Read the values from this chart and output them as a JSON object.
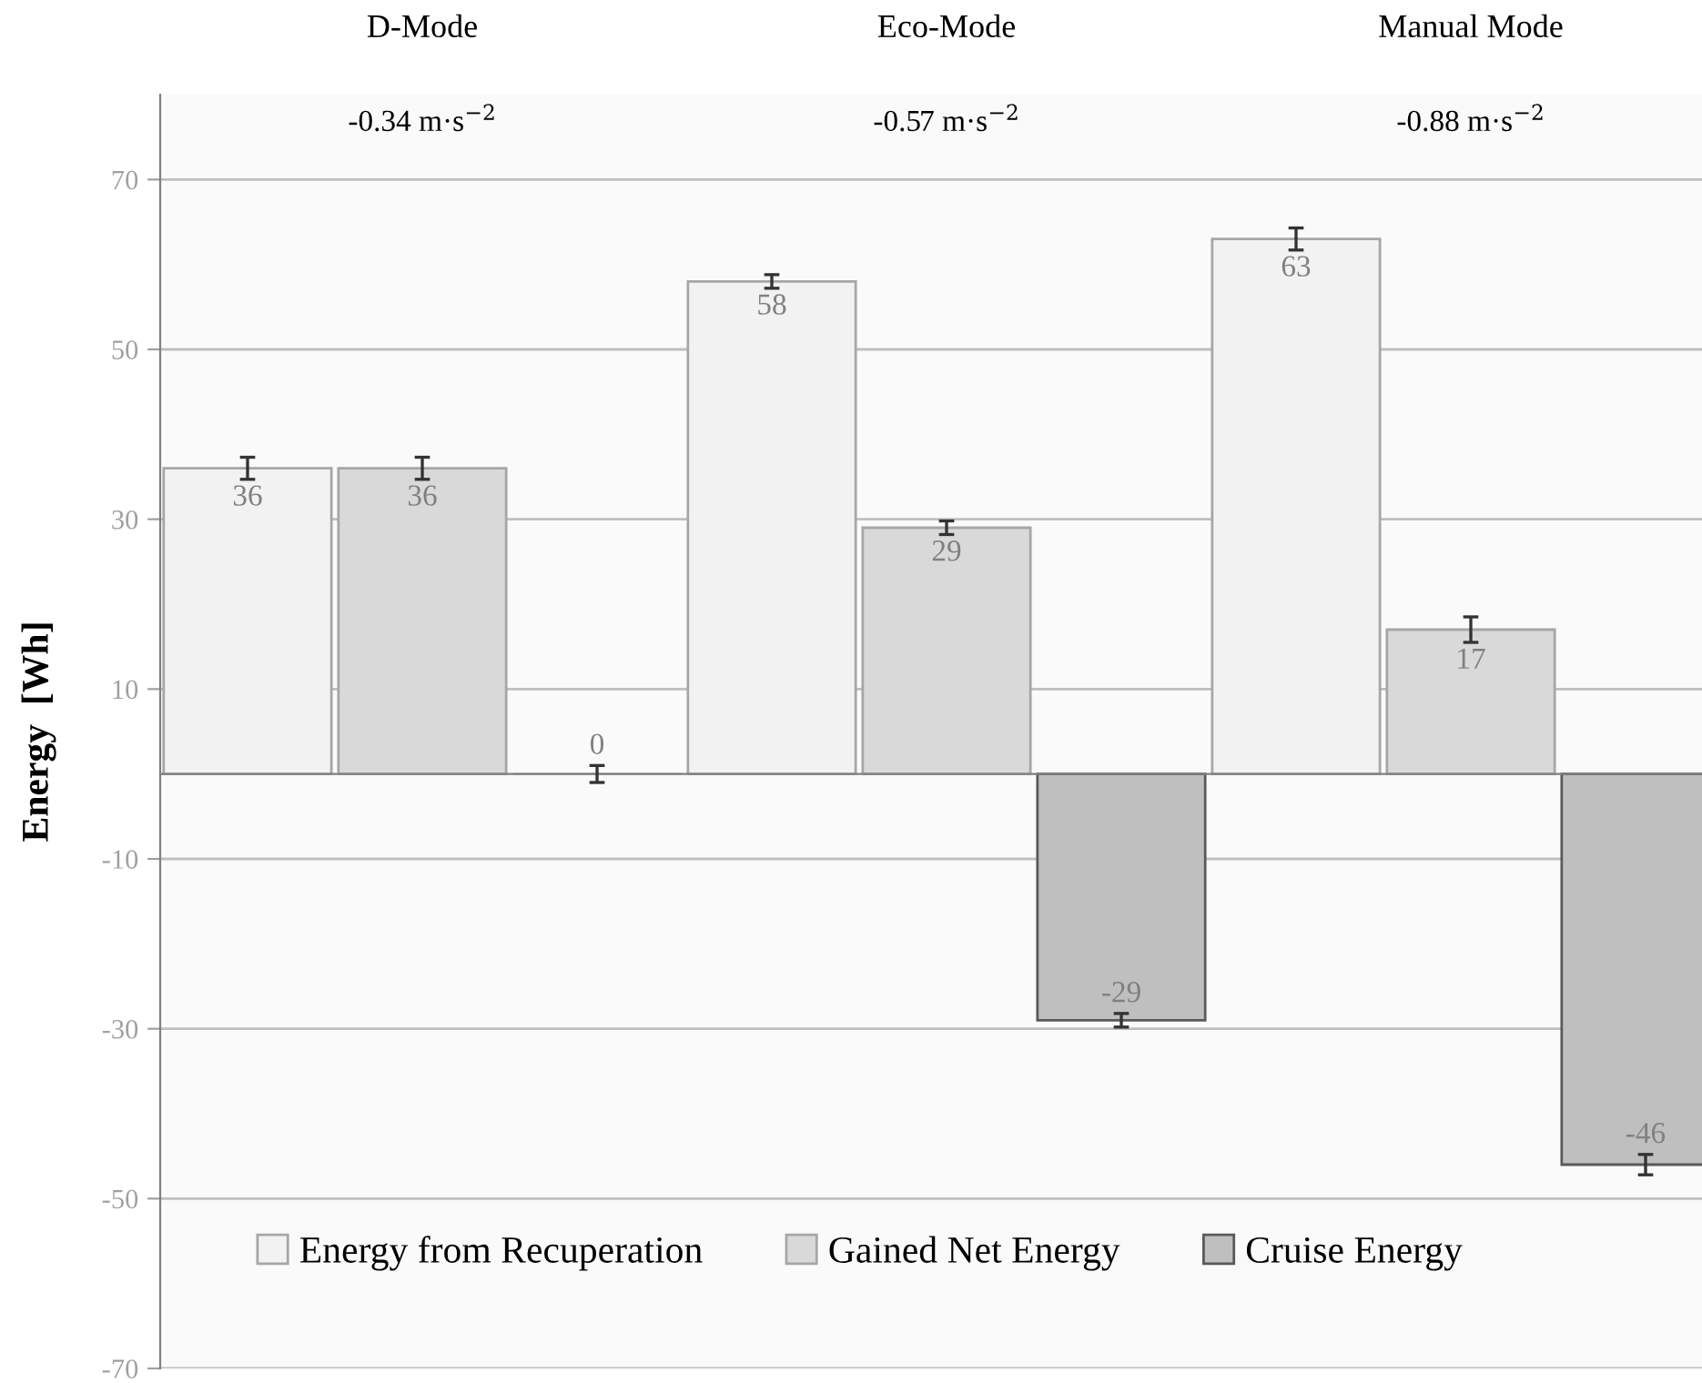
{
  "chart_data": {
    "type": "bar",
    "categories": [
      "D-Mode",
      "Eco-Mode",
      "Manual Mode"
    ],
    "annotations": [
      "-0.34 m·s$^{−2}$",
      "-0.57 m·s$^{−2}$",
      "-0.88 m·s$^{−2}$"
    ],
    "ylabel": "Energy  [Wh]",
    "series": [
      {
        "name": "Energy from Recuperation",
        "color": "#f2f2f2",
        "values": [
          36,
          58,
          63
        ],
        "errors": [
          1.3,
          0.8,
          1.3
        ]
      },
      {
        "name": "Gained Net Energy",
        "color": "#d9d9d9",
        "values": [
          36,
          29,
          17
        ],
        "errors": [
          1.3,
          0.8,
          1.5
        ]
      },
      {
        "name": "Cruise Energy",
        "color": "#bfbfbf",
        "values": [
          0,
          -29,
          -46
        ],
        "errors": [
          1.0,
          0.8,
          1.2
        ]
      }
    ],
    "ylim": [
      -70,
      80
    ],
    "yticks": [
      -70,
      -50,
      -30,
      -10,
      10,
      30,
      50,
      70
    ],
    "grid": "y",
    "legend": "bottom",
    "data_labels": true
  }
}
